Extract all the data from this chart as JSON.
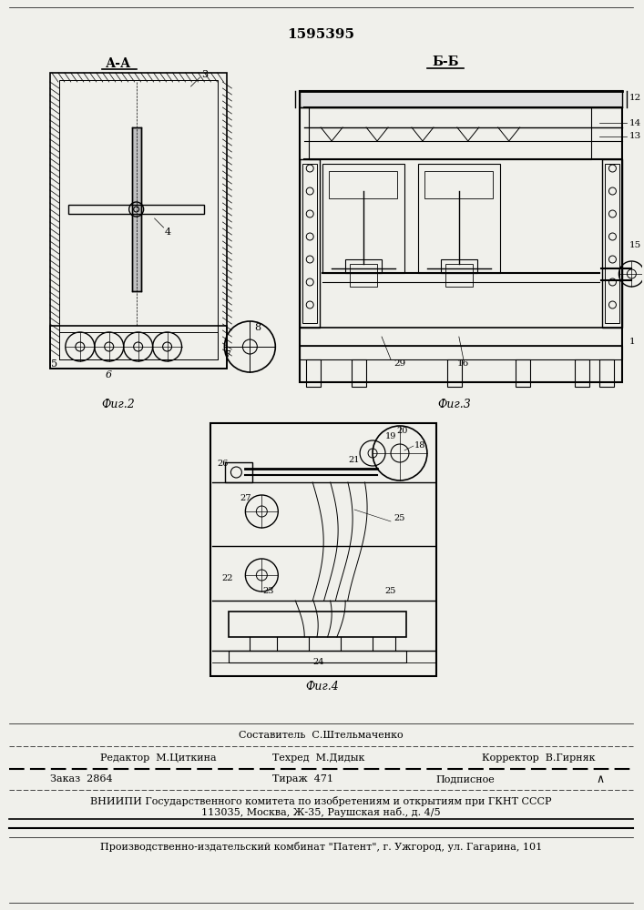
{
  "patent_number": "1595395",
  "bg_color": "#f0f0eb",
  "fig2_label": "А-А",
  "fig3_label": "Б-Б",
  "fig2_caption": "Фиг.2",
  "fig3_caption": "Фиг.3",
  "fig4_caption": "Фиг.4",
  "footer_sestavitel": "Составитель  С.Штельмаченко",
  "footer_redaktor": "Редактор  М.Циткина",
  "footer_tekhred": "Техред  М.Дидык",
  "footer_korrektor": "Корректор  В.Гирняк",
  "footer_zakaz": "Заказ  2864",
  "footer_tirazh": "Тираж  471",
  "footer_podpisnoe": "Подписное",
  "footer_vnipi": "ВНИИПИ Государственного комитета по изобретениям и открытиям при ГКНТ СССР",
  "footer_address": "113035, Москва, Ж-35, Раушская наб., д. 4/5",
  "footer_patent": "Производственно-издательский комбинат \"Патент\", г. Ужгород, ул. Гагарина, 101"
}
